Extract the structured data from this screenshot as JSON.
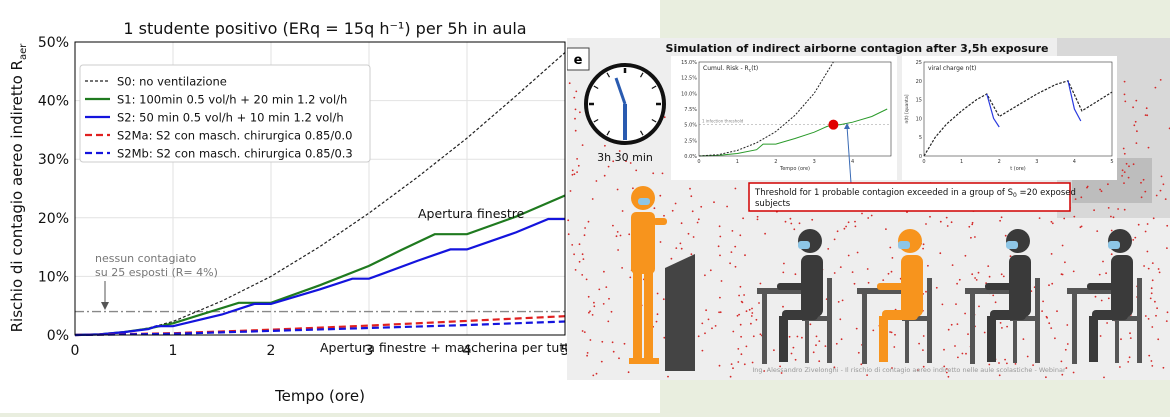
{
  "chart_data": [
    {
      "type": "line",
      "title": "1 studente positivo (ERq = 15q h⁻¹) per 5h in aula",
      "xlabel": "Tempo (ore)",
      "ylabel": "Rischio di contagio aereo indiretto R",
      "ylabel_sub": "aer",
      "xlim": [
        0,
        5
      ],
      "ylim": [
        0,
        50
      ],
      "xticks": [
        "0",
        "1",
        "2",
        "3",
        "4",
        "5"
      ],
      "yticks": [
        "0%",
        "10%",
        "20%",
        "30%",
        "40%",
        "50%"
      ],
      "legend_position": "upper-left",
      "series": [
        {
          "name": "S0: no ventilazione",
          "color": "#222222",
          "dash": "dashed",
          "x": [
            0,
            0.25,
            0.5,
            0.75,
            1,
            1.5,
            2,
            2.5,
            3,
            3.5,
            4,
            4.5,
            5
          ],
          "y": [
            0,
            0.1,
            0.5,
            1.2,
            2.3,
            5.8,
            10,
            15.1,
            20.8,
            27,
            33.6,
            40.8,
            48.2
          ]
        },
        {
          "name": "S1: 100min 0.5 vol/h + 20 min 1.2 vol/h",
          "color": "#1f7a1f",
          "dash": "solid",
          "x": [
            0,
            0.25,
            0.5,
            0.75,
            1,
            1.67,
            2,
            2.5,
            3,
            3.33,
            3.67,
            4,
            4.5,
            5
          ],
          "y": [
            0,
            0.1,
            0.5,
            1.1,
            2.0,
            5.5,
            5.5,
            8.5,
            11.8,
            14.5,
            17.2,
            17.2,
            20.2,
            23.8
          ]
        },
        {
          "name": "S2: 50 min 0.5 vol/h + 10 min 1.2 vol/h",
          "color": "#1414dd",
          "dash": "solid",
          "x": [
            0,
            0.25,
            0.5,
            0.75,
            0.83,
            1,
            1.5,
            1.83,
            2,
            2.5,
            2.83,
            3,
            3.5,
            3.83,
            4,
            4.5,
            4.83,
            5
          ],
          "y": [
            0,
            0.1,
            0.5,
            1.0,
            1.5,
            1.5,
            3.5,
            5.3,
            5.3,
            7.8,
            9.6,
            9.6,
            12.7,
            14.6,
            14.6,
            17.5,
            19.8,
            19.8
          ]
        },
        {
          "name": "S2Ma: S2 con masch. chirurgica 0.85/0.0",
          "color": "#e02020",
          "dash": "dashed",
          "x": [
            0,
            1,
            2,
            3,
            4,
            5
          ],
          "y": [
            0,
            0.3,
            0.9,
            1.6,
            2.4,
            3.2
          ]
        },
        {
          "name": "S2Mb: S2 con masch. chirurgica 0.85/0.3",
          "color": "#1414dd",
          "dash": "dashed",
          "x": [
            0,
            1,
            2,
            3,
            4,
            5
          ],
          "y": [
            0,
            0.2,
            0.7,
            1.2,
            1.7,
            2.3
          ]
        }
      ],
      "threshold": {
        "y": 4,
        "label_line1": "nessun contagiato",
        "label_line2": "su 25 esposti (R= 4%)"
      },
      "annotations": [
        "Apertura finestre",
        "Apertura finestre + mascherina per tutti"
      ]
    },
    {
      "type": "line",
      "title": "Cumul. Risk - R",
      "title_sub": "c",
      "title_tail": "(t)",
      "xlabel": "Tempo (ore)",
      "ylim": [
        0,
        15
      ],
      "xlim": [
        0,
        5
      ],
      "xticks": [
        "0",
        "1",
        "2",
        "3",
        "4"
      ],
      "yticks": [
        "0.0%",
        "2.5%",
        "5.0%",
        "7.5%",
        "10.0%",
        "12.5%",
        "15.0%"
      ],
      "threshold": {
        "y": 5,
        "label": "1 infection threshold"
      },
      "marker": {
        "x": 3.5,
        "y": 5
      },
      "series": [
        {
          "color": "#2a9a2a",
          "x": [
            0,
            0.5,
            1,
            1.5,
            1.67,
            2,
            2.5,
            3,
            3.33,
            3.5,
            3.67,
            4,
            4.5,
            4.9
          ],
          "y": [
            0,
            0.1,
            0.4,
            1.0,
            1.9,
            1.9,
            2.8,
            3.8,
            4.7,
            5.0,
            5.0,
            5.4,
            6.3,
            7.5
          ]
        },
        {
          "color": "#222222",
          "dash": "dashed",
          "x": [
            0,
            0.5,
            1,
            1.5,
            2,
            2.5,
            3,
            3.5
          ],
          "y": [
            0,
            0.2,
            0.9,
            2.1,
            3.9,
            6.5,
            10,
            15
          ]
        }
      ]
    },
    {
      "type": "line",
      "title": "viral charge n(t)",
      "xlabel": "t (ore)",
      "ylabel": "n(t) [quanta]",
      "ylim": [
        0,
        25
      ],
      "xlim": [
        0,
        5
      ],
      "xticks": [
        "0",
        "1",
        "2",
        "3",
        "4",
        "5"
      ],
      "yticks": [
        "0",
        "5",
        "10",
        "15",
        "20",
        "25"
      ],
      "series": [
        {
          "color": "#222222",
          "dash": "dashed",
          "x": [
            0,
            0.3,
            0.6,
            1.0,
            1.4,
            1.67,
            2.0,
            2.5,
            3.0,
            3.5,
            3.83,
            4.2,
            4.6,
            5
          ],
          "y": [
            0,
            5,
            8.5,
            12,
            15,
            16.5,
            10.5,
            13.5,
            16.5,
            19,
            20,
            12,
            14.5,
            17
          ]
        },
        {
          "color": "#2a3adf",
          "x": [
            1.67,
            1.85,
            2.0
          ],
          "y": [
            16.5,
            10,
            7.7
          ]
        },
        {
          "color": "#2a3adf",
          "x": [
            3.83,
            4.0,
            4.17
          ],
          "y": [
            20,
            12.5,
            9.3
          ]
        }
      ]
    }
  ],
  "panel": {
    "label": "e",
    "title": "Simulation of indirect airborne contagion after 3,5h exposure",
    "clock_time": "3h 30 min",
    "callout_line1": "Threshold for 1 probable contagion exceeded in a group of S",
    "callout_sub": "0",
    "callout_line1_tail": " =20 exposed",
    "callout_line2": "subjects",
    "footer": "Ing. Alessandro Zivelonghi - Il rischio di contagio aereo indiretto nelle aule scolastiche - Webinar"
  },
  "colors": {
    "person_orange": "#f7941d",
    "person_dark": "#3a3a3a",
    "dots": "#d42a2a",
    "callout_border": "#d00000"
  }
}
